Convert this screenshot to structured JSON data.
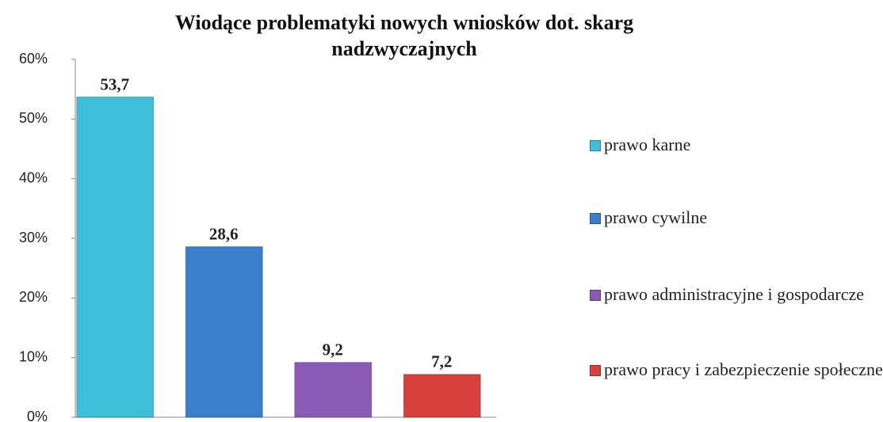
{
  "chart_data": {
    "type": "bar",
    "title": "Wiodące problematyki nowych wniosków dot. skarg nadzwyczajnych",
    "series": [
      {
        "name": "prawo karne",
        "color": "#3cbfd8",
        "values": [
          53.7
        ],
        "value_labels": [
          "53,7"
        ]
      },
      {
        "name": "prawo cywilne",
        "color": "#3b7ecb",
        "values": [
          28.6
        ],
        "value_labels": [
          "28,6"
        ]
      },
      {
        "name": "prawo administracyjne i gospodarcze",
        "color": "#8a5ab4",
        "values": [
          9.2
        ],
        "value_labels": [
          "9,2"
        ]
      },
      {
        "name": "prawo pracy i zabezpieczenie społeczne",
        "color": "#d8403e",
        "values": [
          7.2
        ],
        "value_labels": [
          "7,2"
        ]
      }
    ],
    "ylim": [
      0,
      60
    ],
    "yticks": [
      {
        "value": 0,
        "label": "0%"
      },
      {
        "value": 10,
        "label": "10%"
      },
      {
        "value": 20,
        "label": "20%"
      },
      {
        "value": 30,
        "label": "30%"
      },
      {
        "value": 40,
        "label": "40%"
      },
      {
        "value": 50,
        "label": "50%"
      },
      {
        "value": 60,
        "label": "60%"
      }
    ],
    "legend": "right"
  }
}
